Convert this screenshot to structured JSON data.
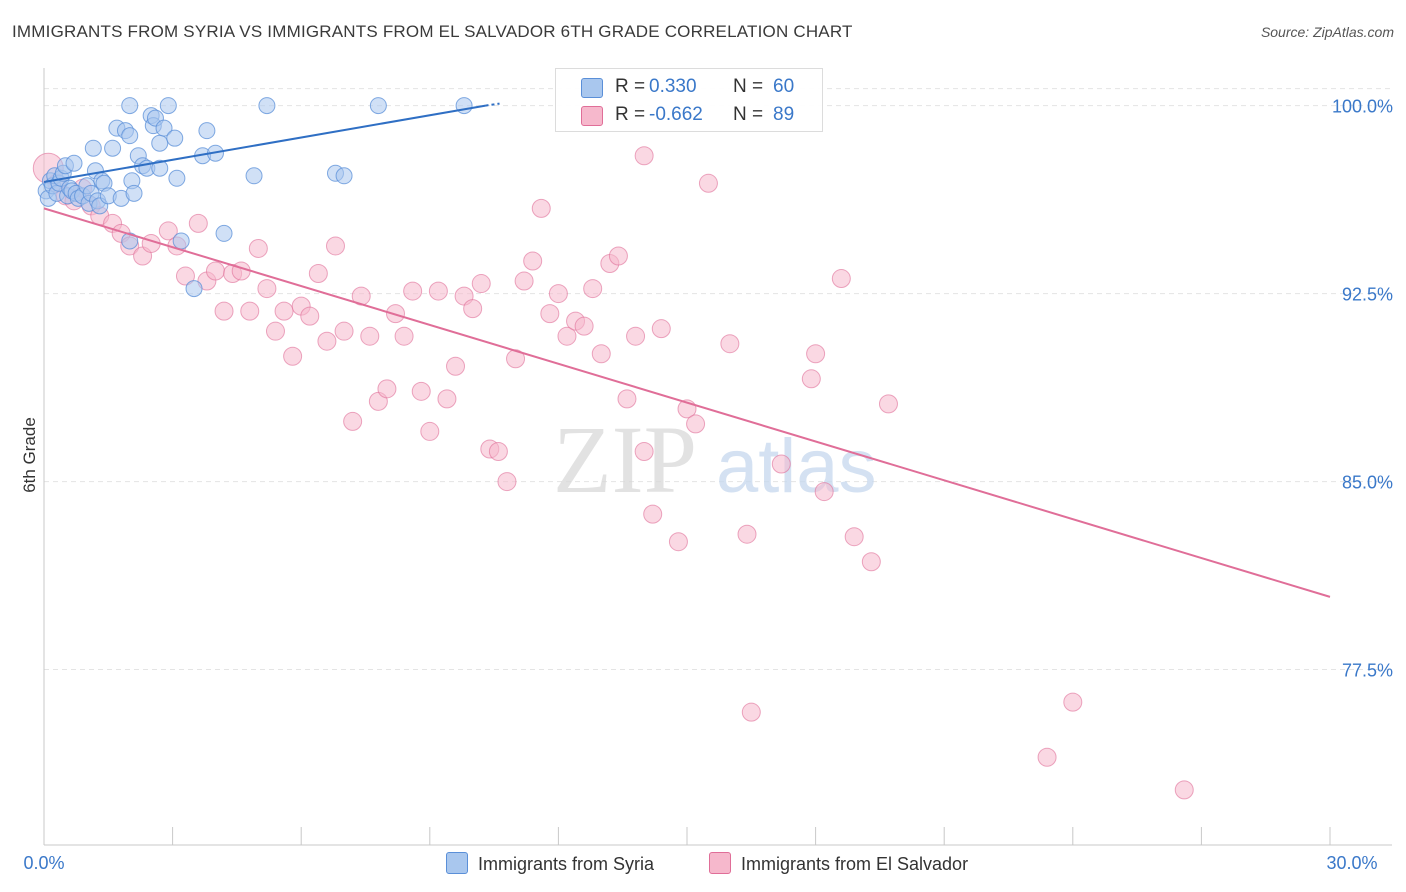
{
  "header": {
    "title": "IMMIGRANTS FROM SYRIA VS IMMIGRANTS FROM EL SALVADOR 6TH GRADE CORRELATION CHART",
    "source": "Source: ZipAtlas.com"
  },
  "watermark": {
    "zip": "ZIP",
    "atlas": "atlas"
  },
  "stats": [
    {
      "r_label": "R =",
      "r_value": "0.330",
      "n_label": "N =",
      "n_value": "60",
      "color": "#a9c7ee"
    },
    {
      "r_label": "R =",
      "r_value": "-0.662",
      "n_label": "N =",
      "n_value": "89",
      "color": "#f6b8cc"
    }
  ],
  "legend": {
    "syria": {
      "label": "Immigrants from Syria",
      "color": "#a9c7ee"
    },
    "elsalvador": {
      "label": "Immigrants from El Salvador",
      "color": "#f6b8cc"
    }
  },
  "chart_data": {
    "type": "scatter",
    "title": "IMMIGRANTS FROM SYRIA VS IMMIGRANTS FROM EL SALVADOR 6TH GRADE CORRELATION CHART",
    "xlabel": "",
    "ylabel": "6th Grade",
    "xlim": [
      0,
      30
    ],
    "ylim": [
      70.5,
      101.5
    ],
    "x_tick_labels": [
      "0.0%",
      "30.0%"
    ],
    "y_ticks": [
      100.0,
      92.5,
      85.0,
      77.5
    ],
    "y_tick_labels": [
      "100.0%",
      "92.5%",
      "85.0%",
      "77.5%"
    ],
    "grid": true,
    "legend_position": "bottom",
    "series": [
      {
        "name": "Immigrants from Syria",
        "color": "#5a8fd8",
        "fill": "#a9c7ee",
        "trend": {
          "x": [
            0.0,
            10.3
          ],
          "y": [
            96.95,
            100.0
          ]
        },
        "points": [
          [
            0.05,
            96.6
          ],
          [
            0.1,
            96.3
          ],
          [
            0.15,
            97.0
          ],
          [
            0.2,
            96.8
          ],
          [
            0.25,
            97.2
          ],
          [
            0.3,
            96.5
          ],
          [
            0.35,
            96.9
          ],
          [
            0.4,
            97.1
          ],
          [
            0.45,
            97.3
          ],
          [
            0.5,
            97.6
          ],
          [
            0.55,
            96.4
          ],
          [
            0.6,
            96.7
          ],
          [
            0.65,
            96.6
          ],
          [
            0.7,
            97.7
          ],
          [
            0.75,
            96.5
          ],
          [
            0.8,
            96.3
          ],
          [
            0.9,
            96.4
          ],
          [
            1.0,
            96.8
          ],
          [
            1.05,
            96.1
          ],
          [
            1.1,
            96.5
          ],
          [
            1.15,
            98.3
          ],
          [
            1.2,
            97.4
          ],
          [
            1.25,
            96.2
          ],
          [
            1.3,
            96.0
          ],
          [
            1.35,
            97.0
          ],
          [
            1.4,
            96.9
          ],
          [
            1.5,
            96.4
          ],
          [
            1.6,
            98.3
          ],
          [
            1.7,
            99.1
          ],
          [
            1.8,
            96.3
          ],
          [
            1.9,
            99.0
          ],
          [
            2.0,
            98.8
          ],
          [
            2.05,
            97.0
          ],
          [
            2.1,
            96.5
          ],
          [
            2.2,
            98.0
          ],
          [
            2.3,
            97.6
          ],
          [
            2.4,
            97.5
          ],
          [
            2.5,
            99.6
          ],
          [
            2.55,
            99.2
          ],
          [
            2.6,
            99.5
          ],
          [
            2.7,
            98.5
          ],
          [
            2.8,
            99.1
          ],
          [
            2.9,
            100.0
          ],
          [
            3.05,
            98.7
          ],
          [
            3.1,
            97.1
          ],
          [
            3.2,
            94.6
          ],
          [
            3.5,
            92.7
          ],
          [
            3.7,
            98.0
          ],
          [
            3.8,
            99.0
          ],
          [
            4.0,
            98.1
          ],
          [
            4.2,
            94.9
          ],
          [
            4.9,
            97.2
          ],
          [
            5.2,
            100.0
          ],
          [
            2.0,
            94.6
          ],
          [
            2.7,
            97.5
          ],
          [
            2.0,
            100.0
          ],
          [
            6.8,
            97.3
          ],
          [
            7.0,
            97.2
          ],
          [
            7.8,
            100.0
          ],
          [
            9.8,
            100.0
          ]
        ]
      },
      {
        "name": "Immigrants from El Salvador",
        "color": "#e06e98",
        "fill": "#f6b8cc",
        "trend": {
          "x": [
            0.0,
            30.0
          ],
          "y": [
            95.9,
            80.4
          ]
        },
        "points": [
          [
            0.1,
            97.5
          ],
          [
            0.3,
            96.9
          ],
          [
            0.5,
            96.4
          ],
          [
            0.7,
            96.2
          ],
          [
            0.9,
            96.7
          ],
          [
            1.1,
            96.0
          ],
          [
            1.3,
            95.6
          ],
          [
            1.6,
            95.3
          ],
          [
            1.8,
            94.9
          ],
          [
            2.0,
            94.4
          ],
          [
            2.3,
            94.0
          ],
          [
            2.5,
            94.5
          ],
          [
            2.9,
            95.0
          ],
          [
            3.1,
            94.4
          ],
          [
            3.3,
            93.2
          ],
          [
            3.6,
            95.3
          ],
          [
            3.8,
            93.0
          ],
          [
            4.0,
            93.4
          ],
          [
            4.2,
            91.8
          ],
          [
            4.4,
            93.3
          ],
          [
            4.6,
            93.4
          ],
          [
            4.8,
            91.8
          ],
          [
            5.0,
            94.3
          ],
          [
            5.2,
            92.7
          ],
          [
            5.4,
            91.0
          ],
          [
            5.6,
            91.8
          ],
          [
            5.8,
            90.0
          ],
          [
            6.0,
            92.0
          ],
          [
            6.2,
            91.6
          ],
          [
            6.4,
            93.3
          ],
          [
            6.6,
            90.6
          ],
          [
            6.8,
            94.4
          ],
          [
            7.0,
            91.0
          ],
          [
            7.2,
            87.4
          ],
          [
            7.4,
            92.4
          ],
          [
            7.6,
            90.8
          ],
          [
            7.8,
            88.2
          ],
          [
            8.0,
            88.7
          ],
          [
            8.2,
            91.7
          ],
          [
            8.4,
            90.8
          ],
          [
            8.6,
            92.6
          ],
          [
            8.8,
            88.6
          ],
          [
            9.0,
            87.0
          ],
          [
            9.2,
            92.6
          ],
          [
            9.4,
            88.3
          ],
          [
            9.6,
            89.6
          ],
          [
            9.8,
            92.4
          ],
          [
            10.0,
            91.9
          ],
          [
            10.2,
            92.9
          ],
          [
            10.4,
            86.3
          ],
          [
            10.6,
            86.2
          ],
          [
            10.8,
            85.0
          ],
          [
            11.0,
            89.9
          ],
          [
            11.2,
            93.0
          ],
          [
            11.4,
            93.8
          ],
          [
            11.6,
            95.9
          ],
          [
            11.8,
            91.7
          ],
          [
            12.0,
            92.5
          ],
          [
            12.2,
            90.8
          ],
          [
            12.4,
            91.4
          ],
          [
            12.6,
            91.2
          ],
          [
            12.8,
            92.7
          ],
          [
            13.0,
            90.1
          ],
          [
            13.2,
            93.7
          ],
          [
            13.4,
            94.0
          ],
          [
            13.6,
            88.3
          ],
          [
            13.8,
            90.8
          ],
          [
            14.0,
            86.2
          ],
          [
            14.2,
            83.7
          ],
          [
            14.4,
            91.1
          ],
          [
            14.8,
            82.6
          ],
          [
            15.0,
            87.9
          ],
          [
            15.2,
            87.3
          ],
          [
            15.5,
            96.9
          ],
          [
            16.0,
            90.5
          ],
          [
            16.4,
            82.9
          ],
          [
            16.5,
            75.8
          ],
          [
            17.2,
            85.7
          ],
          [
            17.9,
            89.1
          ],
          [
            18.0,
            90.1
          ],
          [
            18.2,
            84.6
          ],
          [
            18.6,
            93.1
          ],
          [
            18.9,
            82.8
          ],
          [
            19.3,
            81.8
          ],
          [
            19.7,
            88.1
          ],
          [
            14.0,
            98.0
          ],
          [
            23.4,
            74.0
          ],
          [
            24.0,
            76.2
          ],
          [
            26.6,
            72.7
          ]
        ]
      }
    ]
  }
}
